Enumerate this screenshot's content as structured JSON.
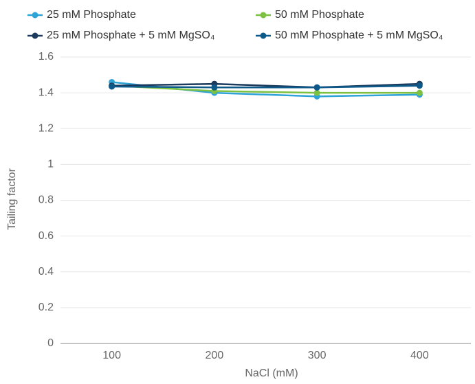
{
  "chart_data": {
    "type": "line",
    "x_label": "NaCl (mM)",
    "y_label": "Tailing factor",
    "x": [
      100,
      200,
      300,
      400
    ],
    "xlim": [
      50,
      450
    ],
    "xticks": [
      100,
      200,
      300,
      400
    ],
    "ylim": [
      0,
      1.6
    ],
    "yticks": [
      0,
      0.2,
      0.4,
      0.6,
      0.8,
      1.0,
      1.2,
      1.4,
      1.6
    ],
    "grid": true,
    "series": [
      {
        "name": "25 mM Phosphate",
        "color": "#2ea3d8",
        "values": [
          1.46,
          1.4,
          1.38,
          1.39
        ]
      },
      {
        "name": "50 mM Phosphate",
        "color": "#7dc142",
        "values": [
          1.44,
          1.41,
          1.4,
          1.4
        ]
      },
      {
        "name": "25 mM Phosphate + 5 mM MgSO₄",
        "color": "#1b3a5c",
        "values": [
          1.44,
          1.45,
          1.43,
          1.45
        ]
      },
      {
        "name": "50 mM Phosphate + 5 mM MgSO₄",
        "color": "#0d5a8a",
        "values": [
          1.435,
          1.43,
          1.43,
          1.44
        ]
      }
    ]
  }
}
